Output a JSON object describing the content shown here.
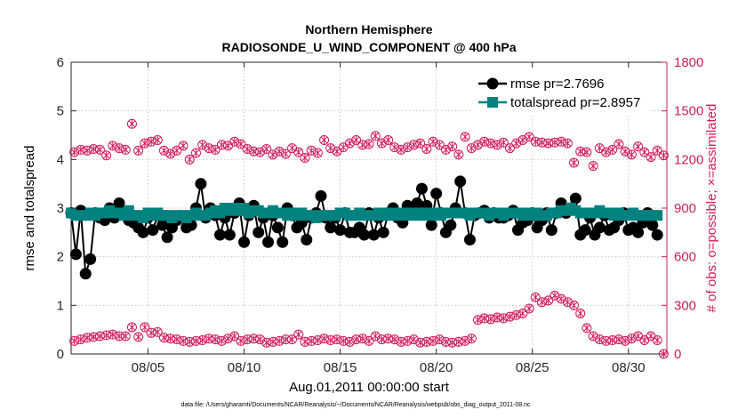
{
  "colors": {
    "rmse": "#000000",
    "spread": "#00827f",
    "obs": "#d01c5b",
    "axis_left": "#262626",
    "axis_right": "#d01c5b",
    "grid": "#c8c8c8"
  },
  "chart_data": {
    "type": "line",
    "title": "Northern Hemisphere",
    "subtitle": "RADIOSONDE_U_WIND_COMPONENT @ 400 hPa",
    "xlabel": "Aug.01,2011 00:00:00 start",
    "ylabel": "rmse and totalspread",
    "ylabel_right": "# of obs: o=possible; ×=assimilated",
    "footnote": "data file: /Users/gharamti/Documents/NCAR/Reanalysis/~/Documents/NCAR/Reanalysis/webpub/obs_diag_output_2011-08.nc",
    "xlim": [
      1.0,
      32.0
    ],
    "ylim": [
      0,
      6
    ],
    "ylim_right": [
      0,
      1800
    ],
    "xticks": [
      5,
      10,
      15,
      20,
      25,
      30
    ],
    "xtick_labels": [
      "08/05",
      "08/10",
      "08/15",
      "08/20",
      "08/25",
      "08/30"
    ],
    "yticks": [
      0,
      1,
      2,
      3,
      4,
      5,
      6
    ],
    "yticks_right": [
      0,
      300,
      600,
      900,
      1200,
      1500,
      1800
    ],
    "legend": [
      "rmse pr=2.7696",
      "totalspread pr=2.8957"
    ],
    "legend_position": "top-right",
    "series": [
      {
        "name": "rmse",
        "values": [
          2.9,
          2.05,
          2.95,
          1.65,
          1.95,
          2.9,
          2.8,
          2.75,
          3.0,
          2.8,
          3.1,
          2.9,
          2.75,
          2.7,
          2.6,
          2.5,
          2.8,
          2.55,
          2.85,
          2.65,
          2.4,
          2.6,
          2.75,
          2.8,
          2.6,
          2.65,
          3.0,
          3.5,
          2.8,
          3.0,
          2.85,
          2.45,
          2.8,
          2.45,
          2.9,
          3.1,
          2.3,
          2.85,
          3.05,
          2.5,
          2.8,
          2.3,
          2.85,
          2.6,
          2.3,
          3.0,
          2.85,
          2.6,
          2.7,
          2.35,
          2.8,
          2.9,
          3.25,
          2.8,
          2.6,
          2.8,
          2.55,
          2.9,
          2.5,
          2.5,
          2.6,
          2.45,
          2.9,
          2.45,
          2.8,
          2.5,
          2.9,
          3.0,
          2.8,
          2.7,
          3.05,
          2.9,
          3.1,
          3.4,
          3.05,
          2.65,
          3.3,
          2.9,
          2.5,
          2.65,
          3.0,
          3.55,
          2.9,
          2.35,
          2.85,
          2.9,
          2.95,
          2.8,
          2.9,
          2.8,
          2.8,
          2.85,
          2.95,
          2.55,
          2.7,
          2.75,
          2.9,
          2.6,
          2.75,
          2.9,
          2.55,
          2.9,
          3.1,
          2.9,
          3.0,
          3.2,
          2.45,
          2.55,
          2.8,
          2.45,
          2.6,
          2.85,
          2.55,
          2.6,
          2.75,
          2.9,
          2.55,
          2.6,
          2.5,
          2.7,
          2.9,
          2.65,
          2.45
        ],
        "note": "x values are 1.0 + 0.25*i (6-hourly), i = 0..122"
      },
      {
        "name": "totalspread",
        "values": [
          2.9,
          2.85,
          2.85,
          2.85,
          2.9,
          2.85,
          2.9,
          2.9,
          2.95,
          2.9,
          2.9,
          2.85,
          2.95,
          2.85,
          2.85,
          2.8,
          2.9,
          2.85,
          2.9,
          2.85,
          2.85,
          2.8,
          2.85,
          2.85,
          2.8,
          2.85,
          2.9,
          2.85,
          2.85,
          2.9,
          2.95,
          2.9,
          3.0,
          2.95,
          3.0,
          2.95,
          3.0,
          2.9,
          2.95,
          2.95,
          2.9,
          2.9,
          2.95,
          2.9,
          2.9,
          2.85,
          2.9,
          2.85,
          2.9,
          2.85,
          2.85,
          2.8,
          2.85,
          2.85,
          2.85,
          2.85,
          2.9,
          2.9,
          2.85,
          2.85,
          2.9,
          2.85,
          2.85,
          2.85,
          2.9,
          2.85,
          2.9,
          2.85,
          2.9,
          2.85,
          2.9,
          2.85,
          2.9,
          2.85,
          2.9,
          2.85,
          2.9,
          2.85,
          2.9,
          2.9,
          2.9,
          2.9,
          2.9,
          2.85,
          2.9,
          2.9,
          2.9,
          2.85,
          2.9,
          2.9,
          2.85,
          2.9,
          2.9,
          2.9,
          2.85,
          2.9,
          2.85,
          2.9,
          2.85,
          2.85,
          2.9,
          2.9,
          2.95,
          2.95,
          3.0,
          2.95,
          2.9,
          2.9,
          2.9,
          2.9,
          2.95,
          2.9,
          2.9,
          2.85,
          2.9,
          2.85,
          2.85,
          2.9,
          2.85,
          2.85,
          2.85,
          2.85,
          2.85
        ]
      },
      {
        "name": "obs_possible",
        "axis": "right",
        "values_upper": [
          1245,
          1260,
          1255,
          1265,
          1260,
          1225,
          1285,
          1270,
          1260,
          1420,
          1255,
          1300,
          1310,
          1320,
          1255,
          1235,
          1255,
          1285,
          1200,
          1240,
          1290,
          1270,
          1260,
          1290,
          1285,
          1310,
          1295,
          1265,
          1250,
          1245,
          1265,
          1230,
          1250,
          1235,
          1270,
          1245,
          1210,
          1255,
          1240,
          1320,
          1270,
          1250,
          1275,
          1300,
          1320,
          1290,
          1295,
          1345,
          1300,
          1320,
          1275,
          1260,
          1275,
          1290,
          1300,
          1265,
          1310,
          1290,
          1260,
          1280,
          1230,
          1340,
          1270,
          1290,
          1310,
          1300,
          1290,
          1305,
          1270,
          1300,
          1320,
          1340,
          1310,
          1305,
          1300,
          1305,
          1310,
          1300,
          1180,
          1250,
          1245,
          1160,
          1270,
          1245,
          1260,
          1295,
          1250,
          1230,
          1280,
          1245,
          1215,
          1255,
          1225
        ],
        "values_lower": [
          80,
          90,
          100,
          105,
          110,
          115,
          120,
          110,
          110,
          165,
          105,
          165,
          130,
          135,
          100,
          95,
          90,
          80,
          75,
          80,
          85,
          95,
          90,
          80,
          95,
          110,
          80,
          90,
          95,
          90,
          70,
          75,
          80,
          90,
          90,
          120,
          75,
          80,
          85,
          95,
          85,
          90,
          80,
          75,
          90,
          95,
          80,
          110,
          90,
          95,
          90,
          75,
          80,
          90,
          70,
          75,
          80,
          90,
          75,
          70,
          75,
          80,
          95,
          210,
          220,
          215,
          225,
          220,
          230,
          240,
          250,
          280,
          350,
          320,
          330,
          360,
          340,
          320,
          300,
          250,
          160,
          110,
          90,
          80,
          85,
          90,
          80,
          95,
          110,
          85,
          110,
          85,
          0
        ]
      }
    ]
  }
}
